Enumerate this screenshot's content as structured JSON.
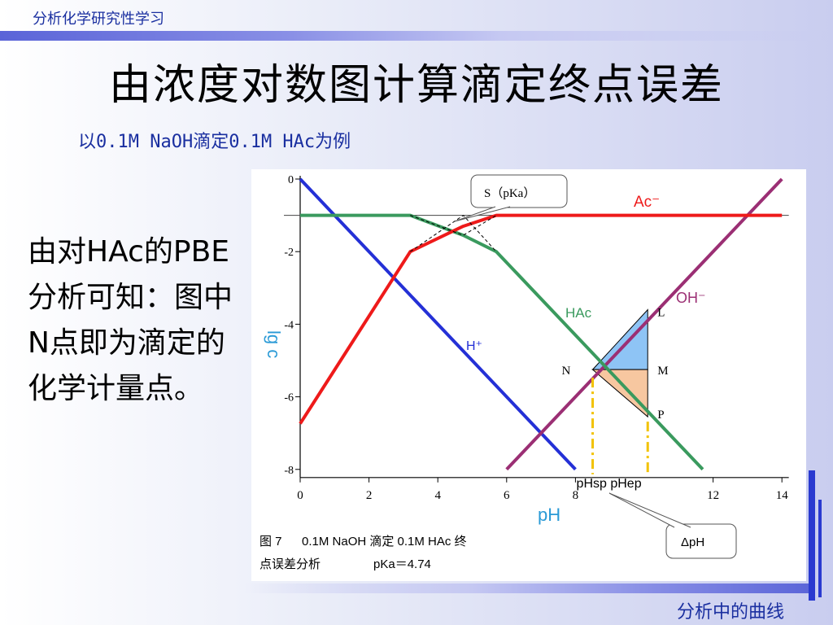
{
  "header": {
    "course": "分析化学研究性学习",
    "footer": "分析中的曲线"
  },
  "title": "由浓度对数图计算滴定终点误差",
  "subtitle": "以0.1M NaOH滴定0.1M HAc为例",
  "explanation": "由对HAc的PBE分析可知：图中N点即为滴定的化学计量点。",
  "colors": {
    "h": "#2430d6",
    "oh": "#9b2f74",
    "hac": "#3a9a5e",
    "ac": "#ee1a1a",
    "accent": "#1a2fa0"
  },
  "chart_data": {
    "type": "line",
    "xlabel": "pH",
    "ylabel": "lg c",
    "xlim": [
      0,
      14
    ],
    "ylim": [
      -8,
      0
    ],
    "x_ticks": [
      "0",
      "2",
      "4",
      "6",
      "8",
      "12",
      "14"
    ],
    "y_ticks": [
      "0",
      "-2",
      "-4",
      "-6",
      "-8"
    ],
    "series": [
      {
        "name": "H⁺",
        "x": [
          0,
          8
        ],
        "y": [
          0,
          -8
        ]
      },
      {
        "name": "OH⁻",
        "x": [
          6,
          14
        ],
        "y": [
          -8,
          0
        ]
      },
      {
        "name": "HAc",
        "x": [
          0,
          3.2,
          4.74,
          5.7,
          11.7
        ],
        "y": [
          -1,
          -1,
          -1.55,
          -2,
          -8
        ]
      },
      {
        "name": "Ac⁻",
        "x": [
          0,
          3.2,
          4.74,
          5.7,
          14
        ],
        "y": [
          -6.74,
          -2,
          -1.3,
          -1,
          -1
        ]
      }
    ],
    "annotations": {
      "S": "S（pKa）",
      "L": "L",
      "M": "M",
      "N": "N",
      "P": "P",
      "ph_labels": "pHsp pHep",
      "delta": "ΔpH"
    },
    "caption_line1_a": "图 7",
    "caption_line1_b": "0.1M NaOH 滴定 0.1M HAc 终",
    "caption_line2_a": "点误差分析",
    "caption_line2_b": "pKa＝4.74"
  }
}
